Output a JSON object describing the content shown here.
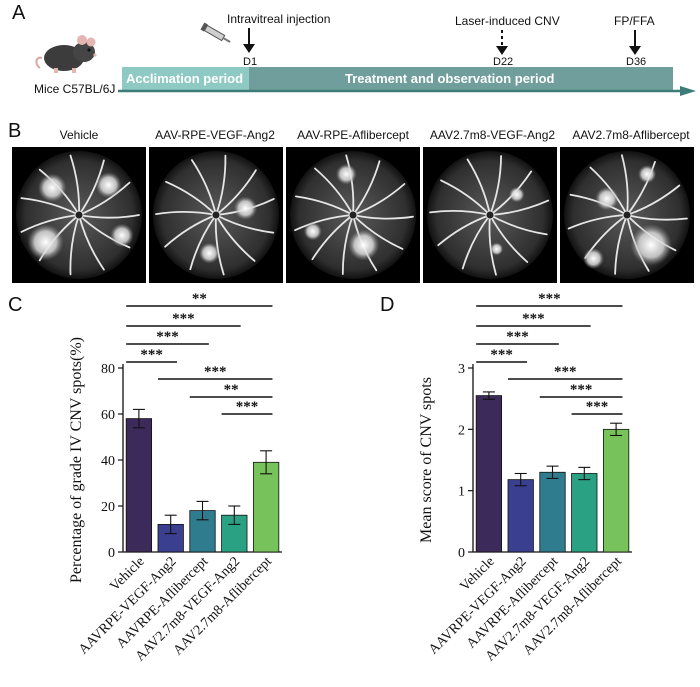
{
  "panels": {
    "a": "A",
    "b": "B",
    "c": "C",
    "d": "D"
  },
  "timeline": {
    "subject": "Mice C57BL/6J",
    "events": [
      {
        "label": "Intravitreal injection",
        "day": "D1"
      },
      {
        "label": "Laser-induced CNV",
        "day": "D22"
      },
      {
        "label": "FP/FFA",
        "day": "D36"
      }
    ],
    "phase1": "Acclimation period",
    "phase2": "Treatment and observation period",
    "colors": {
      "phase1": "#8fc9c4",
      "phase2": "#6f9e9c",
      "arrow": "#3d7d78"
    }
  },
  "images": {
    "titles": [
      "Vehicle",
      "AAV-RPE-VEGF-Ang2",
      "AAV-RPE-Aflibercept",
      "AAV2.7m8-VEGF-Ang2",
      "AAV2.7m8-Aflibercept"
    ]
  },
  "chart_data": [
    {
      "type": "bar",
      "panel": "C",
      "ylabel": "Percentage of grade IV CNV spots(%)",
      "ylim": [
        0,
        80
      ],
      "yticks": [
        "0",
        "20",
        "40",
        "60",
        "80"
      ],
      "categories": [
        "Vehicle",
        "AAVRPE-VEGF-Ang2",
        "AAVRPE-Aflibercept",
        "AAV2.7m8-VEGF-Ang2",
        "AAV2.7m8-Aflibercept"
      ],
      "values": [
        58,
        12,
        18,
        16,
        39
      ],
      "errors": [
        4,
        4,
        4,
        4,
        5
      ],
      "colors": [
        "#3b2a5a",
        "#3a3f8f",
        "#2e7c8e",
        "#2aa182",
        "#77c25a"
      ],
      "comparisons": [
        {
          "from": 0,
          "to": 4,
          "label": "**"
        },
        {
          "from": 0,
          "to": 3,
          "label": "***"
        },
        {
          "from": 0,
          "to": 2,
          "label": "***"
        },
        {
          "from": 0,
          "to": 1,
          "label": "***"
        },
        {
          "from": 1,
          "to": 4,
          "label": "***"
        },
        {
          "from": 2,
          "to": 4,
          "label": "**"
        },
        {
          "from": 3,
          "to": 4,
          "label": "***"
        }
      ]
    },
    {
      "type": "bar",
      "panel": "D",
      "ylabel": "Mean score of CNV spots",
      "ylim": [
        0,
        3
      ],
      "yticks": [
        "0",
        "1",
        "2",
        "3"
      ],
      "categories": [
        "Vehicle",
        "AAVRPE-VEGF-Ang2",
        "AAVRPE-Aflibercept",
        "AAV2.7m8-VEGF-Ang2",
        "AAV2.7m8-Aflibercept"
      ],
      "values": [
        2.55,
        1.18,
        1.3,
        1.28,
        2.0
      ],
      "errors": [
        0.06,
        0.1,
        0.1,
        0.1,
        0.1
      ],
      "colors": [
        "#3b2a5a",
        "#3a3f8f",
        "#2e7c8e",
        "#2aa182",
        "#77c25a"
      ],
      "comparisons": [
        {
          "from": 0,
          "to": 4,
          "label": "***"
        },
        {
          "from": 0,
          "to": 3,
          "label": "***"
        },
        {
          "from": 0,
          "to": 2,
          "label": "***"
        },
        {
          "from": 0,
          "to": 1,
          "label": "***"
        },
        {
          "from": 1,
          "to": 4,
          "label": "***"
        },
        {
          "from": 2,
          "to": 4,
          "label": "***"
        },
        {
          "from": 3,
          "to": 4,
          "label": "***"
        }
      ]
    }
  ]
}
